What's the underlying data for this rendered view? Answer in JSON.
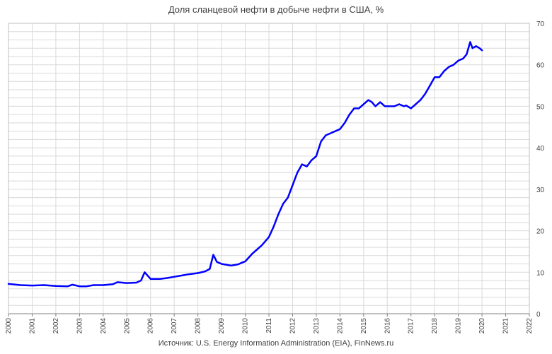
{
  "chart_data": {
    "type": "line",
    "title": "Доля сланцевой нефти в добыче нефти в США, %",
    "source": "Источник: U.S. Energy Information Administration (EIA), FinNews.ru",
    "xlabel": "",
    "ylabel": "",
    "x_ticks": [
      "2000",
      "2001",
      "2002",
      "2003",
      "2004",
      "2005",
      "2006",
      "2007",
      "2008",
      "2009",
      "2010",
      "2011",
      "2012",
      "2013",
      "2014",
      "2015",
      "2016",
      "2017",
      "2018",
      "2019",
      "2020",
      "2021",
      "2022"
    ],
    "y_ticks": [
      "0",
      "10",
      "20",
      "30",
      "40",
      "50",
      "60",
      "70"
    ],
    "xlim": [
      2000,
      2022
    ],
    "ylim": [
      0,
      70
    ],
    "y_axis_side": "right",
    "grid": true,
    "line_color": "#0000ff",
    "series": [
      {
        "x": [
          2000.0,
          2000.5,
          2001.0,
          2001.5,
          2002.0,
          2002.5,
          2002.7,
          2003.0,
          2003.3,
          2003.6,
          2004.0,
          2004.4,
          2004.6,
          2005.0,
          2005.4,
          2005.6,
          2005.75,
          2006.0,
          2006.4,
          2006.7,
          2007.0,
          2007.3,
          2007.6,
          2008.0,
          2008.3,
          2008.5,
          2008.65,
          2008.8,
          2009.0,
          2009.4,
          2009.7,
          2009.9,
          2010.0,
          2010.3,
          2010.5,
          2010.7,
          2011.0,
          2011.2,
          2011.4,
          2011.6,
          2011.8,
          2012.0,
          2012.2,
          2012.4,
          2012.6,
          2012.8,
          2013.0,
          2013.2,
          2013.4,
          2013.6,
          2013.8,
          2014.0,
          2014.2,
          2014.4,
          2014.6,
          2014.8,
          2015.0,
          2015.2,
          2015.35,
          2015.5,
          2015.7,
          2015.9,
          2016.0,
          2016.3,
          2016.5,
          2016.7,
          2016.8,
          2017.0,
          2017.2,
          2017.4,
          2017.6,
          2017.8,
          2018.0,
          2018.2,
          2018.4,
          2018.6,
          2018.8,
          2019.0,
          2019.2,
          2019.35,
          2019.5,
          2019.6,
          2019.75,
          2019.9,
          2020.0
        ],
        "values": [
          7.2,
          6.9,
          6.8,
          6.9,
          6.7,
          6.6,
          7.0,
          6.6,
          6.6,
          6.9,
          6.9,
          7.1,
          7.6,
          7.4,
          7.5,
          8.0,
          10.0,
          8.4,
          8.4,
          8.6,
          8.9,
          9.2,
          9.5,
          9.8,
          10.2,
          10.8,
          14.2,
          12.5,
          12.0,
          11.6,
          11.9,
          12.4,
          12.6,
          14.5,
          15.5,
          16.5,
          18.5,
          21.0,
          24.0,
          26.5,
          28.0,
          31.0,
          34.0,
          36.0,
          35.5,
          37.0,
          38.0,
          41.5,
          43.0,
          43.5,
          44.0,
          44.5,
          46.0,
          48.0,
          49.5,
          49.5,
          50.5,
          51.5,
          51.0,
          50.0,
          51.0,
          50.0,
          50.0,
          50.0,
          50.5,
          50.0,
          50.2,
          49.5,
          50.5,
          51.5,
          53.0,
          55.0,
          57.0,
          57.0,
          58.5,
          59.5,
          60.0,
          61.0,
          61.5,
          62.5,
          65.5,
          64.0,
          64.5,
          64.0,
          63.5
        ]
      }
    ]
  }
}
